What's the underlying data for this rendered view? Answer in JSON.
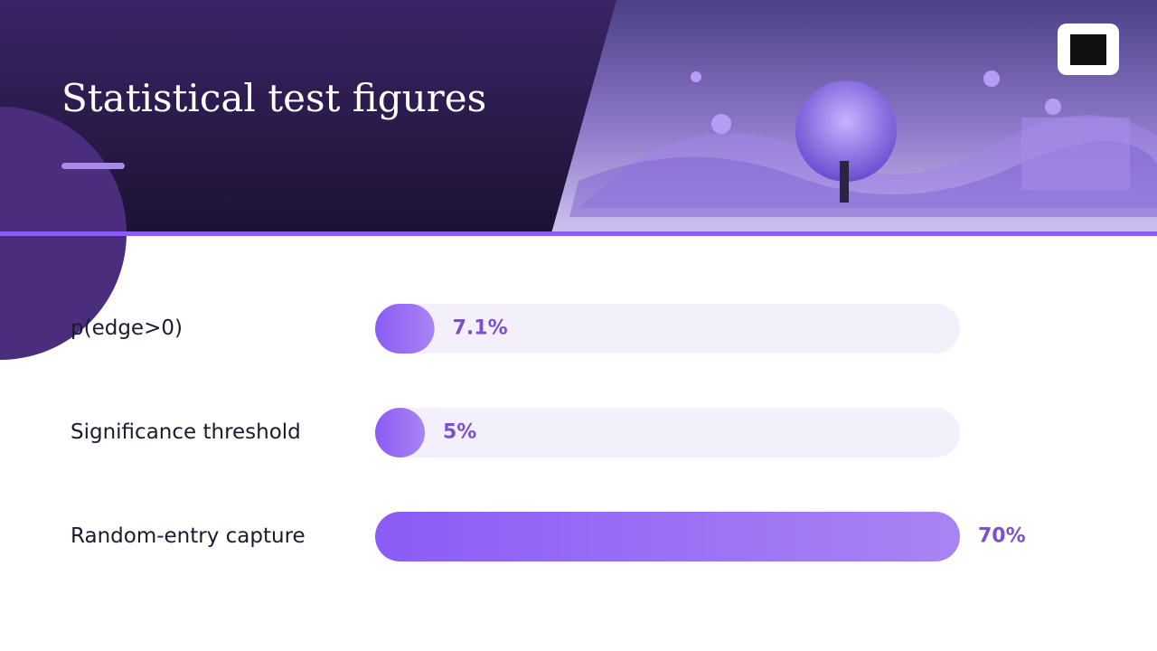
{
  "chart_data": {
    "type": "bar",
    "orientation": "horizontal",
    "title": "Statistical test figures",
    "categories": [
      "p(edge>0)",
      "Significance threshold",
      "Random-entry capture"
    ],
    "values": [
      7.1,
      5,
      70
    ],
    "value_labels": [
      "7.1%",
      "5%",
      "70%"
    ],
    "color": "#8b5cf6"
  }
}
